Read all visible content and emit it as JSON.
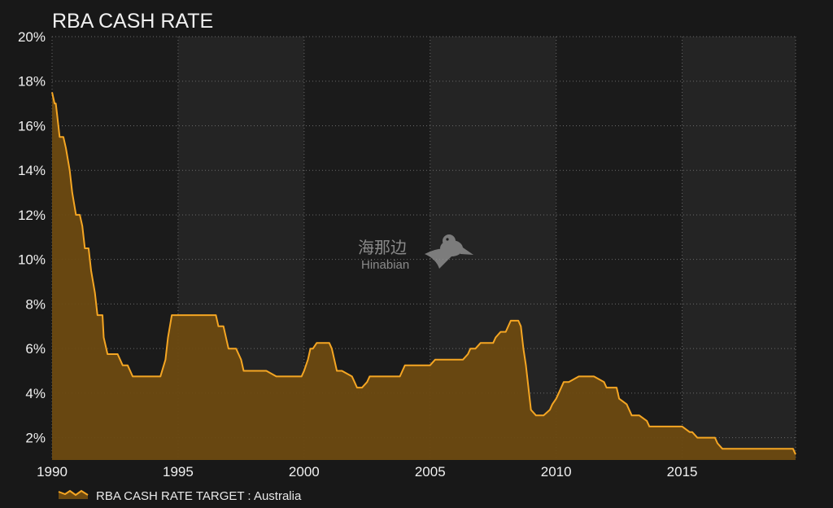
{
  "chart_data": {
    "type": "area",
    "title": "RBA CASH RATE",
    "xlabel": "",
    "ylabel": "",
    "xlim": [
      1990,
      2019.5
    ],
    "ylim": [
      1,
      20
    ],
    "y_ticks": [
      "2%",
      "4%",
      "6%",
      "8%",
      "10%",
      "12%",
      "14%",
      "16%",
      "18%",
      "20%"
    ],
    "y_tick_values": [
      2,
      4,
      6,
      8,
      10,
      12,
      14,
      16,
      18,
      20
    ],
    "x_ticks": [
      "1990",
      "1995",
      "2000",
      "2005",
      "2010",
      "2015"
    ],
    "x_tick_values": [
      1990,
      1995,
      2000,
      2005,
      2010,
      2015
    ],
    "grid": true,
    "legend_position": "bottom-left",
    "series": [
      {
        "name": "RBA CASH RATE TARGET : Australia",
        "color": "#f5a623",
        "fill": "#6e4a10",
        "x": [
          1990.0,
          1990.1,
          1990.15,
          1990.2,
          1990.3,
          1990.45,
          1990.55,
          1990.7,
          1990.8,
          1990.95,
          1991.0,
          1991.1,
          1991.2,
          1991.3,
          1991.45,
          1991.55,
          1991.7,
          1991.8,
          1991.9,
          1992.0,
          1992.05,
          1992.2,
          1992.3,
          1992.45,
          1992.55,
          1992.6,
          1992.8,
          1993.0,
          1993.2,
          1993.4,
          1993.5,
          1993.6,
          1993.8,
          1994.0,
          1994.3,
          1994.5,
          1994.6,
          1994.75,
          1994.85,
          1995.0,
          1995.1,
          1995.3,
          1996.0,
          1996.5,
          1996.6,
          1996.8,
          1997.0,
          1997.3,
          1997.5,
          1997.6,
          1997.8,
          1998.0,
          1998.5,
          1998.9,
          1999.0,
          1999.5,
          1999.9,
          2000.0,
          2000.15,
          2000.25,
          2000.35,
          2000.5,
          2000.6,
          2000.7,
          2001.0,
          2001.1,
          2001.2,
          2001.3,
          2001.5,
          2001.9,
          2002.0,
          2002.1,
          2002.3,
          2002.5,
          2002.6,
          2003.0,
          2003.8,
          2003.9,
          2004.0,
          2004.8,
          2005.0,
          2005.2,
          2005.5,
          2006.0,
          2006.3,
          2006.5,
          2006.6,
          2006.8,
          2007.0,
          2007.5,
          2007.6,
          2007.8,
          2008.0,
          2008.2,
          2008.5,
          2008.6,
          2008.7,
          2008.8,
          2008.9,
          2009.0,
          2009.2,
          2009.5,
          2009.75,
          2009.85,
          2010.0,
          2010.1,
          2010.2,
          2010.3,
          2010.5,
          2010.9,
          2011.0,
          2011.5,
          2011.9,
          2012.0,
          2012.4,
          2012.5,
          2012.8,
          2012.9,
          2013.0,
          2013.2,
          2013.3,
          2013.6,
          2013.7,
          2014.0,
          2015.0,
          2015.3,
          2015.4,
          2015.6,
          2016.0,
          2016.3,
          2016.4,
          2016.6,
          2017.0,
          2018.0,
          2019.0,
          2019.4,
          2019.5
        ],
        "values": [
          17.5,
          17.0,
          17.0,
          16.5,
          15.5,
          15.5,
          15.0,
          14.0,
          13.0,
          12.0,
          12.0,
          12.0,
          11.5,
          10.5,
          10.5,
          9.5,
          8.5,
          7.5,
          7.5,
          7.5,
          6.5,
          5.75,
          5.75,
          5.75,
          5.75,
          5.75,
          5.25,
          5.25,
          4.75,
          4.75,
          4.75,
          4.75,
          4.75,
          4.75,
          4.75,
          5.5,
          6.5,
          7.5,
          7.5,
          7.5,
          7.5,
          7.5,
          7.5,
          7.5,
          7.0,
          7.0,
          6.0,
          6.0,
          5.5,
          5.0,
          5.0,
          5.0,
          5.0,
          4.75,
          4.75,
          4.75,
          4.75,
          5.0,
          5.5,
          6.0,
          6.0,
          6.25,
          6.25,
          6.25,
          6.25,
          6.0,
          5.5,
          5.0,
          5.0,
          4.75,
          4.5,
          4.25,
          4.25,
          4.5,
          4.75,
          4.75,
          4.75,
          5.0,
          5.25,
          5.25,
          5.25,
          5.5,
          5.5,
          5.5,
          5.5,
          5.75,
          6.0,
          6.0,
          6.25,
          6.25,
          6.5,
          6.75,
          6.75,
          7.25,
          7.25,
          7.0,
          6.0,
          5.25,
          4.25,
          3.25,
          3.0,
          3.0,
          3.25,
          3.5,
          3.75,
          4.0,
          4.25,
          4.5,
          4.5,
          4.75,
          4.75,
          4.75,
          4.5,
          4.25,
          4.25,
          3.75,
          3.5,
          3.25,
          3.0,
          3.0,
          3.0,
          2.75,
          2.5,
          2.5,
          2.5,
          2.25,
          2.25,
          2.0,
          2.0,
          2.0,
          1.75,
          1.5,
          1.5,
          1.5,
          1.5,
          1.5,
          1.25
        ]
      }
    ]
  },
  "watermark": {
    "text": "海那边",
    "subtext": "Hinabian"
  },
  "colors": {
    "background": "#181818",
    "band_light": "#242424",
    "band_dark": "#1b1b1b",
    "grid": "#6a6a6a",
    "line": "#f5a623",
    "area_fill": "#6e4a10"
  }
}
